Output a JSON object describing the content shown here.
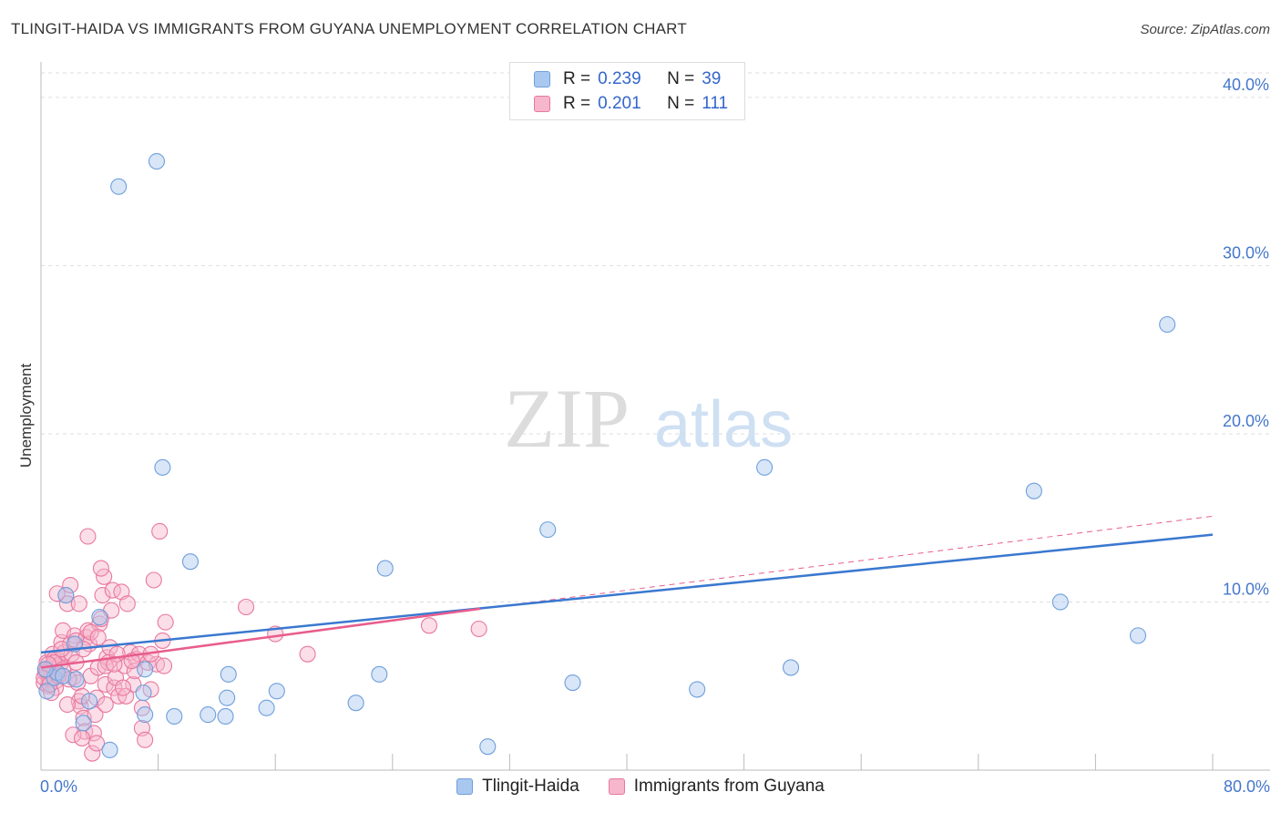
{
  "title": "TLINGIT-HAIDA VS IMMIGRANTS FROM GUYANA UNEMPLOYMENT CORRELATION CHART",
  "source": "Source: ZipAtlas.com",
  "watermark": {
    "zip": "ZIP",
    "atlas": "atlas"
  },
  "colors": {
    "blue_fill": "#a9c8ef",
    "blue_stroke": "#6f9fdb",
    "blue_line": "#3a78d0",
    "pink_fill": "#f6b6cb",
    "pink_stroke": "#e8789f",
    "pink_line": "#e85d8c",
    "grid": "#dddddd",
    "axis_text": "#4477cc"
  },
  "legend": {
    "rows": [
      {
        "r_label": "R =",
        "r_value": "0.239",
        "n_label": "N =",
        "n_value": "39"
      },
      {
        "r_label": "R =",
        "r_value": "0.201",
        "n_label": "N =",
        "n_value": "111"
      }
    ]
  },
  "chart_data": {
    "type": "scatter",
    "title": "TLINGIT-HAIDA VS IMMIGRANTS FROM GUYANA UNEMPLOYMENT CORRELATION CHART",
    "ylabel": "Unemployment",
    "xlabel": "",
    "xlim": [
      0,
      80
    ],
    "ylim": [
      0,
      42
    ],
    "x_tick_labels": [
      "0.0%",
      "80.0%"
    ],
    "y_ticks": [
      10,
      20,
      30,
      40
    ],
    "y_tick_labels": [
      "10.0%",
      "20.0%",
      "30.0%",
      "40.0%"
    ],
    "grid": true,
    "series": [
      {
        "name": "Tlingit-Haida",
        "r": 0.239,
        "n": 39,
        "trend": {
          "x": [
            0,
            80
          ],
          "y": [
            7.0,
            14.0
          ]
        },
        "points": [
          [
            5.3,
            34.7
          ],
          [
            7.9,
            36.2
          ],
          [
            8.3,
            18.0
          ],
          [
            10.2,
            12.4
          ],
          [
            11.4,
            3.3
          ],
          [
            12.6,
            3.2
          ],
          [
            12.7,
            4.3
          ],
          [
            12.8,
            5.7
          ],
          [
            15.4,
            3.7
          ],
          [
            16.1,
            4.7
          ],
          [
            21.5,
            4.0
          ],
          [
            23.1,
            5.7
          ],
          [
            23.5,
            12.0
          ],
          [
            30.5,
            1.4
          ],
          [
            34.6,
            14.3
          ],
          [
            36.3,
            5.2
          ],
          [
            44.8,
            4.8
          ],
          [
            49.4,
            18.0
          ],
          [
            51.2,
            6.1
          ],
          [
            67.8,
            16.6
          ],
          [
            69.6,
            10.0
          ],
          [
            74.9,
            8.0
          ],
          [
            76.9,
            26.5
          ],
          [
            0.4,
            4.7
          ],
          [
            0.9,
            5.5
          ],
          [
            1.1,
            5.8
          ],
          [
            1.5,
            5.6
          ],
          [
            1.7,
            10.4
          ],
          [
            2.3,
            7.5
          ],
          [
            2.4,
            5.4
          ],
          [
            2.9,
            2.8
          ],
          [
            3.3,
            4.1
          ],
          [
            4.0,
            9.1
          ],
          [
            4.7,
            1.2
          ],
          [
            7.1,
            6.0
          ],
          [
            7.0,
            4.6
          ],
          [
            7.1,
            3.3
          ],
          [
            9.1,
            3.2
          ],
          [
            0.3,
            6.0
          ]
        ]
      },
      {
        "name": "Immigrants from Guyana",
        "r": 0.201,
        "n": 111,
        "trend": {
          "x": [
            0,
            30
          ],
          "y": [
            6.1,
            9.6
          ]
        },
        "trend_dashed": {
          "x": [
            30,
            80
          ],
          "y": [
            9.6,
            15.1
          ]
        },
        "points": [
          [
            0.2,
            5.2
          ],
          [
            0.3,
            5.8
          ],
          [
            0.4,
            6.4
          ],
          [
            0.5,
            5.0
          ],
          [
            0.6,
            6.1
          ],
          [
            0.7,
            5.5
          ],
          [
            0.8,
            6.9
          ],
          [
            0.9,
            5.9
          ],
          [
            1.0,
            5.3
          ],
          [
            1.1,
            6.6
          ],
          [
            0.3,
            6.0
          ],
          [
            0.5,
            5.6
          ],
          [
            0.6,
            5.4
          ],
          [
            0.8,
            6.2
          ],
          [
            0.9,
            6.6
          ],
          [
            1.0,
            4.9
          ],
          [
            1.2,
            5.7
          ],
          [
            1.3,
            6.3
          ],
          [
            1.4,
            7.6
          ],
          [
            1.5,
            8.3
          ],
          [
            1.6,
            7.0
          ],
          [
            1.7,
            10.4
          ],
          [
            1.8,
            9.9
          ],
          [
            2.0,
            7.5
          ],
          [
            2.1,
            6.9
          ],
          [
            2.2,
            5.5
          ],
          [
            2.3,
            8.0
          ],
          [
            2.4,
            7.7
          ],
          [
            2.5,
            5.2
          ],
          [
            2.6,
            4.1
          ],
          [
            2.7,
            3.8
          ],
          [
            2.8,
            4.4
          ],
          [
            2.9,
            3.1
          ],
          [
            3.0,
            2.3
          ],
          [
            3.1,
            7.9
          ],
          [
            3.2,
            8.3
          ],
          [
            3.3,
            7.5
          ],
          [
            3.4,
            5.6
          ],
          [
            3.5,
            1.0
          ],
          [
            3.6,
            2.2
          ],
          [
            3.7,
            3.3
          ],
          [
            3.8,
            4.3
          ],
          [
            3.9,
            6.1
          ],
          [
            4.0,
            8.7
          ],
          [
            4.1,
            9.0
          ],
          [
            4.2,
            10.4
          ],
          [
            4.3,
            11.5
          ],
          [
            4.4,
            5.1
          ],
          [
            4.5,
            6.7
          ],
          [
            4.6,
            6.4
          ],
          [
            4.7,
            7.3
          ],
          [
            4.8,
            9.5
          ],
          [
            4.9,
            10.7
          ],
          [
            5.0,
            4.9
          ],
          [
            5.1,
            5.5
          ],
          [
            5.3,
            4.4
          ],
          [
            5.5,
            10.6
          ],
          [
            5.7,
            6.2
          ],
          [
            5.9,
            9.9
          ],
          [
            6.1,
            7.0
          ],
          [
            6.3,
            5.1
          ],
          [
            6.5,
            6.6
          ],
          [
            6.7,
            6.9
          ],
          [
            6.9,
            2.5
          ],
          [
            7.1,
            1.8
          ],
          [
            7.3,
            6.4
          ],
          [
            7.5,
            4.8
          ],
          [
            7.7,
            11.3
          ],
          [
            7.9,
            6.3
          ],
          [
            8.1,
            14.2
          ],
          [
            8.3,
            7.7
          ],
          [
            8.5,
            8.8
          ],
          [
            3.2,
            13.9
          ],
          [
            4.1,
            12.0
          ],
          [
            2.0,
            11.0
          ],
          [
            1.1,
            10.5
          ],
          [
            2.6,
            9.9
          ],
          [
            1.4,
            7.2
          ],
          [
            0.7,
            4.6
          ],
          [
            1.8,
            3.9
          ],
          [
            2.2,
            2.1
          ],
          [
            2.8,
            1.9
          ],
          [
            3.8,
            1.6
          ],
          [
            4.4,
            3.9
          ],
          [
            5.2,
            6.9
          ],
          [
            5.8,
            4.4
          ],
          [
            6.4,
            5.9
          ],
          [
            6.9,
            3.7
          ],
          [
            7.5,
            6.9
          ],
          [
            8.4,
            6.2
          ],
          [
            14.0,
            9.7
          ],
          [
            16.0,
            8.1
          ],
          [
            18.2,
            6.9
          ],
          [
            26.5,
            8.6
          ],
          [
            29.9,
            8.4
          ],
          [
            0.2,
            5.5
          ],
          [
            0.4,
            5.9
          ],
          [
            0.6,
            5.1
          ],
          [
            0.9,
            6.4
          ],
          [
            1.2,
            5.6
          ],
          [
            1.5,
            6.0
          ],
          [
            1.9,
            5.4
          ],
          [
            2.4,
            6.4
          ],
          [
            2.9,
            7.2
          ],
          [
            3.4,
            8.2
          ],
          [
            3.9,
            7.9
          ],
          [
            4.4,
            6.2
          ],
          [
            5.0,
            6.3
          ],
          [
            5.6,
            4.9
          ],
          [
            6.2,
            6.5
          ],
          [
            0.5,
            6.3
          ]
        ]
      }
    ]
  },
  "bottom_legend": [
    "Tlingit-Haida",
    "Immigrants from Guyana"
  ]
}
